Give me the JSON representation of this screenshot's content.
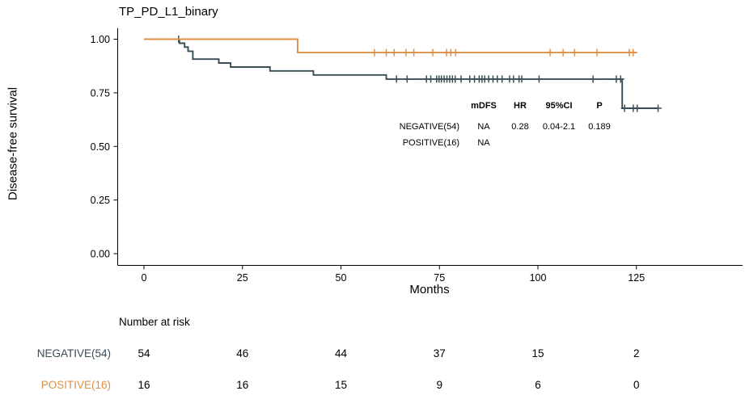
{
  "title": "TP_PD_L1_binary",
  "stats": {
    "headers": {
      "mdfs": "mDFS",
      "hr": "HR",
      "ci": "95%CI",
      "p": "P"
    },
    "rows": [
      {
        "label": "NEGATIVE(54)",
        "mdfs": "NA",
        "hr": "0.28",
        "ci": "0.04-2.1",
        "p": "0.189"
      },
      {
        "label": "POSITIVE(16)",
        "mdfs": "NA",
        "hr": "",
        "ci": "",
        "p": ""
      }
    ]
  },
  "risk_table": {
    "header": "Number at risk",
    "months": [
      0,
      25,
      50,
      75,
      100,
      125
    ],
    "rows": [
      {
        "label": "NEGATIVE(54)",
        "color": "#374E55",
        "counts": [
          54,
          46,
          44,
          37,
          15,
          2
        ]
      },
      {
        "label": "POSITIVE(16)",
        "color": "#DF8F44",
        "counts": [
          16,
          16,
          15,
          9,
          6,
          0
        ]
      }
    ]
  },
  "chart_data": {
    "type": "line",
    "subtype": "kaplan-meier-step",
    "title": "TP_PD_L1_binary",
    "xlabel": "Months",
    "ylabel": "Disease-free survival",
    "xlim": [
      0,
      150
    ],
    "ylim": [
      0,
      1
    ],
    "grid": false,
    "xticks": [
      {
        "v": 0,
        "label": "0"
      },
      {
        "v": 25,
        "label": "25"
      },
      {
        "v": 50,
        "label": "50"
      },
      {
        "v": 75,
        "label": "75"
      },
      {
        "v": 100,
        "label": "100"
      },
      {
        "v": 125,
        "label": "125"
      }
    ],
    "yticks": [
      {
        "v": 0.0,
        "label": "0.00"
      },
      {
        "v": 0.25,
        "label": "0.25"
      },
      {
        "v": 0.5,
        "label": "0.50"
      },
      {
        "v": 0.75,
        "label": "0.75"
      },
      {
        "v": 1.0,
        "label": "1.00"
      }
    ],
    "series": [
      {
        "name": "NEGATIVE(54)",
        "color": "#374E55",
        "steps": [
          [
            0,
            1.0
          ],
          [
            9,
            1.0
          ],
          [
            9,
            0.981
          ],
          [
            10.3,
            0.981
          ],
          [
            10.3,
            0.963
          ],
          [
            11.2,
            0.963
          ],
          [
            11.2,
            0.944
          ],
          [
            12.4,
            0.944
          ],
          [
            12.4,
            0.907
          ],
          [
            19,
            0.907
          ],
          [
            19,
            0.889
          ],
          [
            22,
            0.889
          ],
          [
            22,
            0.87
          ],
          [
            32,
            0.87
          ],
          [
            32,
            0.852
          ],
          [
            43,
            0.852
          ],
          [
            43,
            0.833
          ],
          [
            61.5,
            0.833
          ],
          [
            61.5,
            0.814
          ],
          [
            121.4,
            0.814
          ],
          [
            121.4,
            0.678
          ],
          [
            130.5,
            0.678
          ]
        ],
        "censors": [
          [
            8.8,
            1.0
          ],
          [
            64.1,
            0.814
          ],
          [
            66.8,
            0.814
          ],
          [
            71.7,
            0.814
          ],
          [
            72.8,
            0.814
          ],
          [
            74.3,
            0.814
          ],
          [
            74.9,
            0.814
          ],
          [
            75.5,
            0.814
          ],
          [
            76.2,
            0.814
          ],
          [
            76.9,
            0.814
          ],
          [
            77.6,
            0.814
          ],
          [
            78.3,
            0.814
          ],
          [
            79.0,
            0.814
          ],
          [
            80.5,
            0.814
          ],
          [
            82.7,
            0.814
          ],
          [
            83.9,
            0.814
          ],
          [
            85.1,
            0.814
          ],
          [
            85.8,
            0.814
          ],
          [
            86.5,
            0.814
          ],
          [
            87.5,
            0.814
          ],
          [
            88.6,
            0.814
          ],
          [
            89.7,
            0.814
          ],
          [
            90.9,
            0.814
          ],
          [
            92.8,
            0.814
          ],
          [
            93.8,
            0.814
          ],
          [
            95.2,
            0.814
          ],
          [
            95.9,
            0.814
          ],
          [
            100.3,
            0.814
          ],
          [
            114.0,
            0.814
          ],
          [
            119.9,
            0.814
          ],
          [
            121.0,
            0.814
          ],
          [
            122.0,
            0.678
          ],
          [
            124.2,
            0.678
          ],
          [
            125.2,
            0.678
          ],
          [
            130.5,
            0.678
          ]
        ]
      },
      {
        "name": "POSITIVE(16)",
        "color": "#DF8F44",
        "steps": [
          [
            0,
            1.0
          ],
          [
            39,
            1.0
          ],
          [
            39,
            0.9375
          ],
          [
            125.2,
            0.9375
          ]
        ],
        "censors": [
          [
            58.5,
            0.9375
          ],
          [
            61.5,
            0.9375
          ],
          [
            63.5,
            0.9375
          ],
          [
            66.5,
            0.9375
          ],
          [
            68.5,
            0.9375
          ],
          [
            73.3,
            0.9375
          ],
          [
            76.8,
            0.9375
          ],
          [
            77.9,
            0.9375
          ],
          [
            79.1,
            0.9375
          ],
          [
            103.1,
            0.9375
          ],
          [
            106.4,
            0.9375
          ],
          [
            109.3,
            0.9375
          ],
          [
            115.0,
            0.9375
          ],
          [
            123.2,
            0.9375
          ],
          [
            124.2,
            0.9375
          ]
        ]
      }
    ]
  }
}
